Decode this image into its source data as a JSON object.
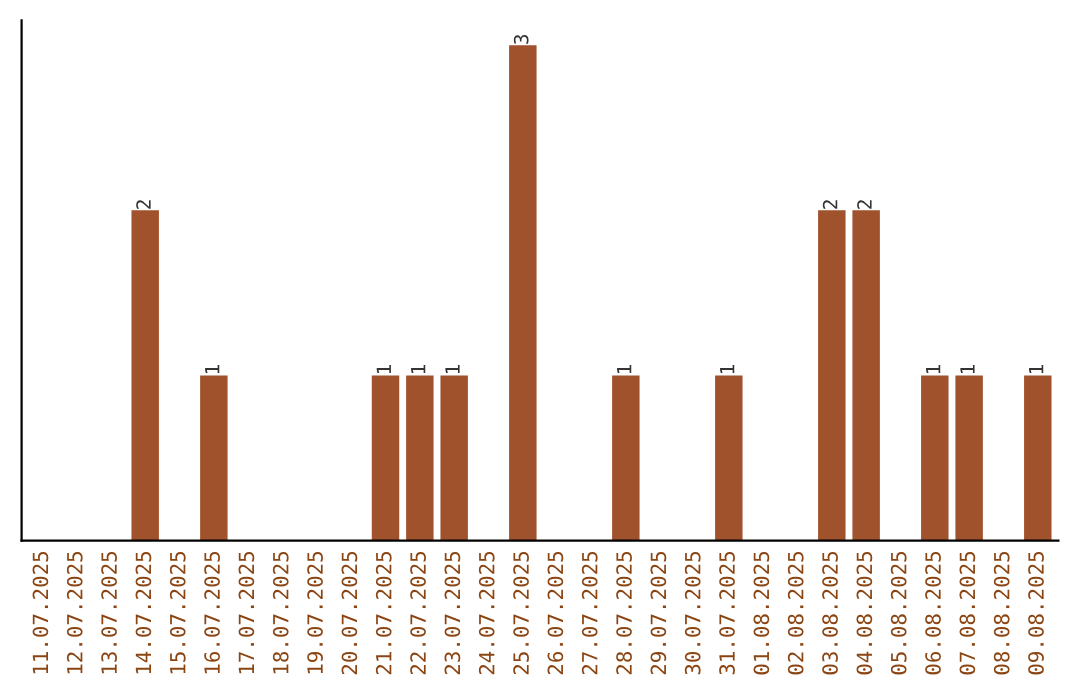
{
  "chart_data": {
    "type": "bar",
    "categories": [
      "11.07.2025",
      "12.07.2025",
      "13.07.2025",
      "14.07.2025",
      "15.07.2025",
      "16.07.2025",
      "17.07.2025",
      "18.07.2025",
      "19.07.2025",
      "20.07.2025",
      "21.07.2025",
      "22.07.2025",
      "23.07.2025",
      "24.07.2025",
      "25.07.2025",
      "26.07.2025",
      "27.07.2025",
      "28.07.2025",
      "29.07.2025",
      "30.07.2025",
      "31.07.2025",
      "01.08.2025",
      "02.08.2025",
      "03.08.2025",
      "04.08.2025",
      "05.08.2025",
      "06.08.2025",
      "07.08.2025",
      "08.08.2025",
      "09.08.2025"
    ],
    "values": [
      0,
      0,
      0,
      2,
      0,
      1,
      0,
      0,
      0,
      0,
      1,
      1,
      1,
      0,
      3,
      0,
      0,
      1,
      0,
      0,
      1,
      0,
      0,
      2,
      2,
      0,
      1,
      1,
      0,
      1
    ],
    "value_labels": [
      null,
      null,
      null,
      "2",
      null,
      "1",
      null,
      null,
      null,
      null,
      "1",
      "1",
      "1",
      null,
      "3",
      null,
      null,
      "1",
      null,
      null,
      "1",
      null,
      null,
      "2",
      "2",
      null,
      "1",
      "1",
      null,
      "1"
    ],
    "color": "#a0522d",
    "tick_labels": "x",
    "grid": false,
    "legend": false
  }
}
